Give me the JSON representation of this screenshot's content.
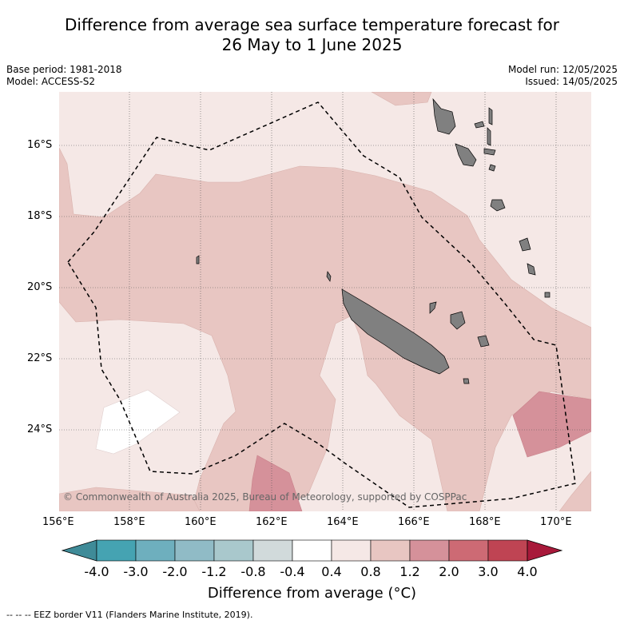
{
  "title": {
    "line1": "Difference from average sea surface temperature forecast for",
    "line2": "26 May to 1 June 2025"
  },
  "meta": {
    "base_period": "Base period: 1981-2018",
    "model": "Model: ACCESS-S2",
    "model_run": "Model run: 12/05/2025",
    "issued": "Issued: 14/05/2025"
  },
  "map": {
    "latitude_labels": [
      "16°S",
      "18°S",
      "20°S",
      "22°S",
      "24°S"
    ],
    "longitude_labels": [
      "156°E",
      "158°E",
      "160°E",
      "162°E",
      "164°E",
      "166°E",
      "168°E",
      "170°E"
    ],
    "copyright": "© Commonwealth of Australia 2025, Bureau of Meteorology, supported by COSPPac",
    "land_color": "#808080"
  },
  "colorbar": {
    "ticks": [
      "-4.0",
      "-3.0",
      "-2.0",
      "-1.2",
      "-0.8",
      "-0.4",
      "0.4",
      "0.8",
      "1.2",
      "2.0",
      "3.0",
      "4.0"
    ],
    "colors": [
      "#3f8b98",
      "#45a3b2",
      "#6eafbe",
      "#90bbc6",
      "#a9c8cc",
      "#d1dadb",
      "#ffffff",
      "#f5e8e6",
      "#e8c6c2",
      "#d5919a",
      "#cd6a74",
      "#bf4453",
      "#a8193a"
    ],
    "label": "Difference from average (°C)"
  },
  "footnote": "--  --  -- EEZ border V11 (Flanders Marine Institute, 2019)."
}
